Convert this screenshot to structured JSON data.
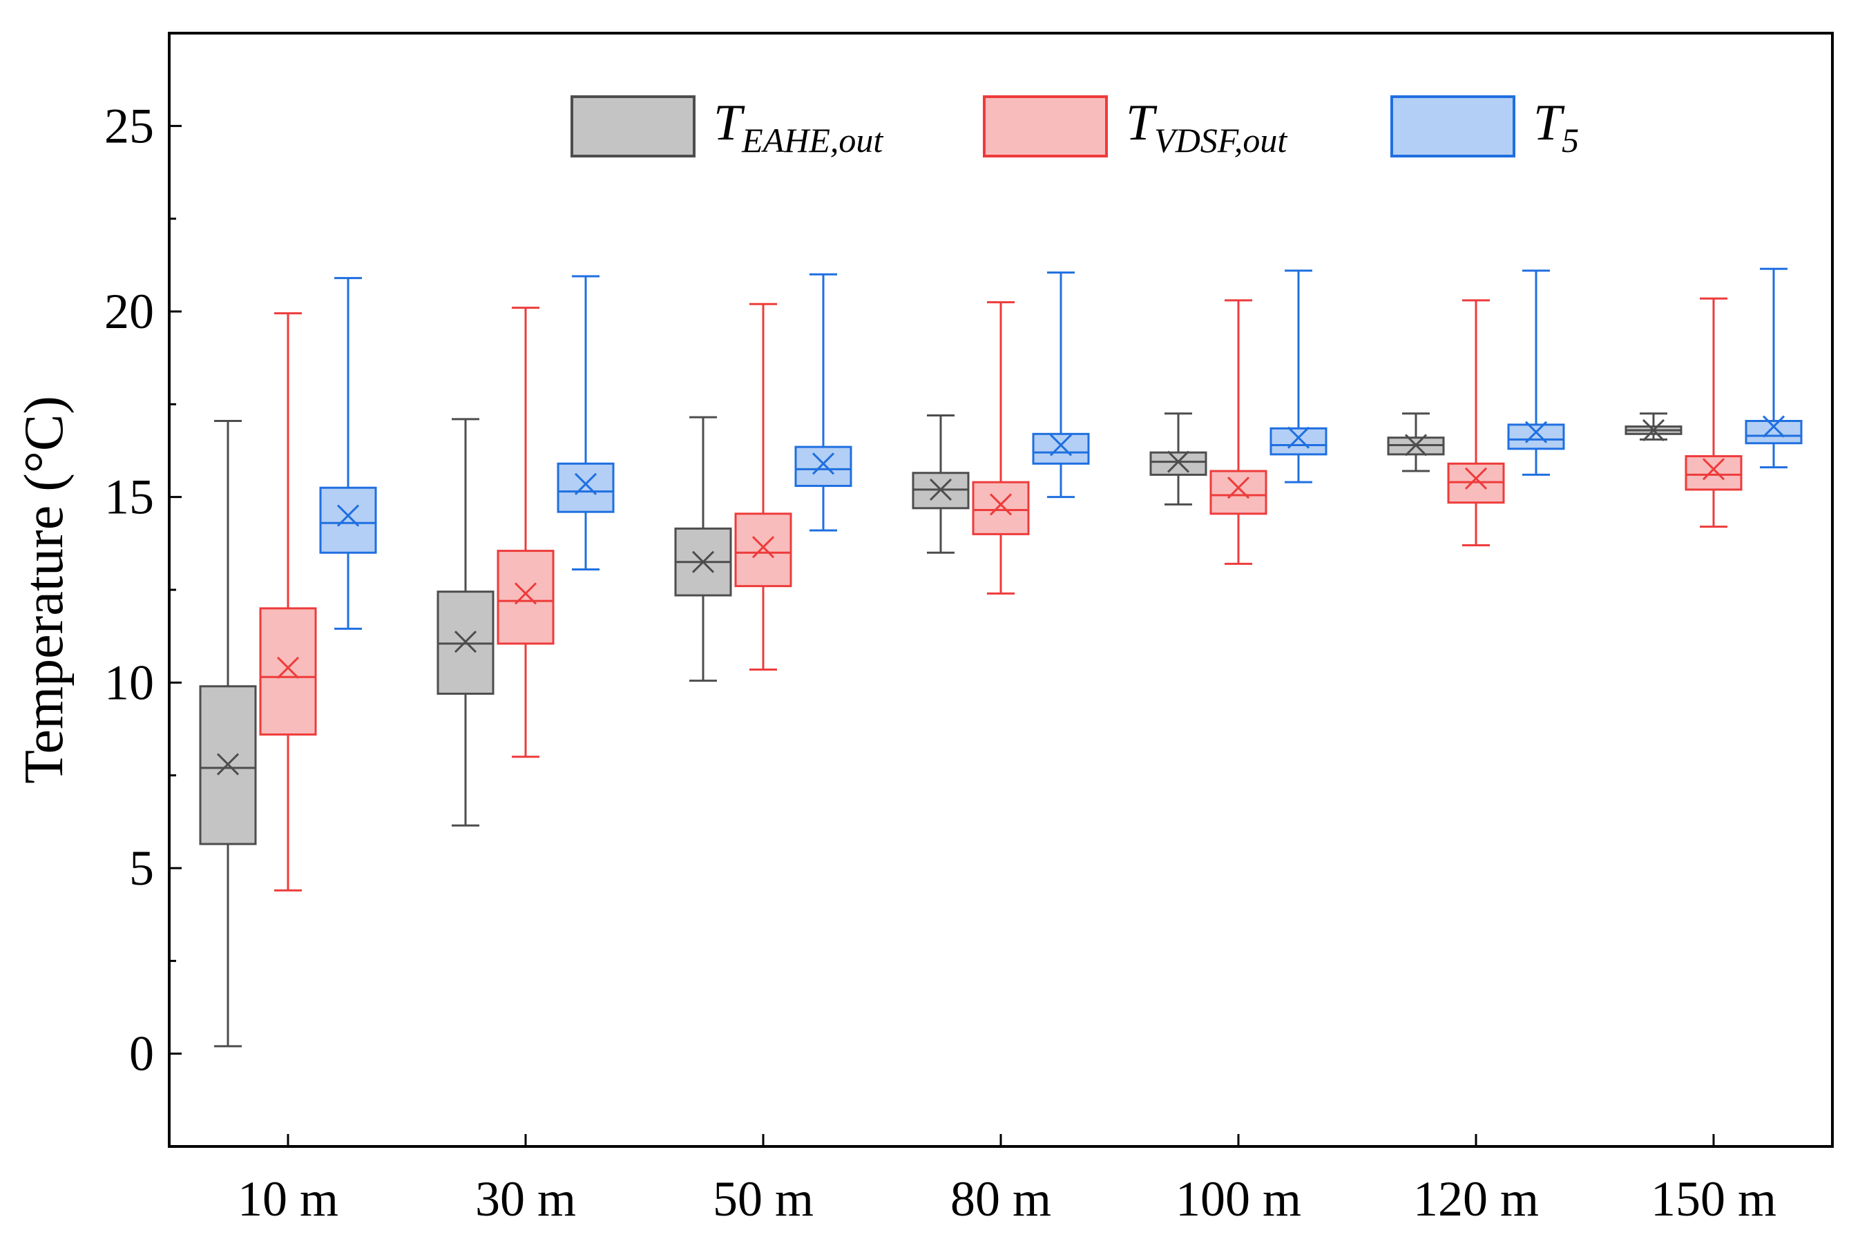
{
  "chart_data": {
    "type": "boxplot",
    "title": "",
    "xlabel": "",
    "ylabel": "Temperature (°C)",
    "ylim": [
      -2.5,
      27.5
    ],
    "yticks": [
      0,
      5,
      10,
      15,
      20,
      25
    ],
    "grid": false,
    "legend_position": "top-center",
    "categories": [
      "10 m",
      "30 m",
      "50 m",
      "80 m",
      "100 m",
      "120 m",
      "150 m"
    ],
    "series": [
      {
        "name": "T",
        "subscript": "EAHE,out",
        "color": "#4d4d4d",
        "fill": "#c4c4c4",
        "boxes": [
          {
            "min": 0.2,
            "q1": 5.65,
            "median": 7.7,
            "q3": 9.9,
            "max": 17.05,
            "mean": 7.8
          },
          {
            "min": 6.15,
            "q1": 9.7,
            "median": 11.05,
            "q3": 12.45,
            "max": 17.1,
            "mean": 11.1
          },
          {
            "min": 10.05,
            "q1": 12.35,
            "median": 13.25,
            "q3": 14.15,
            "max": 17.15,
            "mean": 13.25
          },
          {
            "min": 13.5,
            "q1": 14.7,
            "median": 15.2,
            "q3": 15.65,
            "max": 17.2,
            "mean": 15.2
          },
          {
            "min": 14.8,
            "q1": 15.6,
            "median": 15.95,
            "q3": 16.2,
            "max": 17.25,
            "mean": 15.95
          },
          {
            "min": 15.7,
            "q1": 16.15,
            "median": 16.4,
            "q3": 16.6,
            "max": 17.25,
            "mean": 16.4
          },
          {
            "min": 16.55,
            "q1": 16.7,
            "median": 16.8,
            "q3": 16.9,
            "max": 17.25,
            "mean": 16.8
          }
        ]
      },
      {
        "name": "T",
        "subscript": "VDSF,out",
        "color": "#ee3b3b",
        "fill": "#f9bcbc",
        "boxes": [
          {
            "min": 4.4,
            "q1": 8.6,
            "median": 10.15,
            "q3": 12.0,
            "max": 19.95,
            "mean": 10.4
          },
          {
            "min": 8.0,
            "q1": 11.05,
            "median": 12.2,
            "q3": 13.55,
            "max": 20.1,
            "mean": 12.4
          },
          {
            "min": 10.35,
            "q1": 12.6,
            "median": 13.5,
            "q3": 14.55,
            "max": 20.2,
            "mean": 13.65
          },
          {
            "min": 12.4,
            "q1": 14.0,
            "median": 14.65,
            "q3": 15.4,
            "max": 20.25,
            "mean": 14.8
          },
          {
            "min": 13.2,
            "q1": 14.55,
            "median": 15.05,
            "q3": 15.7,
            "max": 20.3,
            "mean": 15.25
          },
          {
            "min": 13.7,
            "q1": 14.85,
            "median": 15.4,
            "q3": 15.9,
            "max": 20.3,
            "mean": 15.5
          },
          {
            "min": 14.2,
            "q1": 15.2,
            "median": 15.6,
            "q3": 16.1,
            "max": 20.35,
            "mean": 15.75
          }
        ]
      },
      {
        "name": "T",
        "subscript": "5",
        "color": "#1f6fe0",
        "fill": "#b3cff5",
        "boxes": [
          {
            "min": 11.45,
            "q1": 13.5,
            "median": 14.3,
            "q3": 15.25,
            "max": 20.9,
            "mean": 14.5
          },
          {
            "min": 13.05,
            "q1": 14.6,
            "median": 15.15,
            "q3": 15.9,
            "max": 20.95,
            "mean": 15.35
          },
          {
            "min": 14.1,
            "q1": 15.3,
            "median": 15.75,
            "q3": 16.35,
            "max": 21.0,
            "mean": 15.9
          },
          {
            "min": 15.0,
            "q1": 15.9,
            "median": 16.2,
            "q3": 16.7,
            "max": 21.05,
            "mean": 16.4
          },
          {
            "min": 15.4,
            "q1": 16.15,
            "median": 16.4,
            "q3": 16.85,
            "max": 21.1,
            "mean": 16.6
          },
          {
            "min": 15.6,
            "q1": 16.3,
            "median": 16.55,
            "q3": 16.95,
            "max": 21.1,
            "mean": 16.75
          },
          {
            "min": 15.8,
            "q1": 16.45,
            "median": 16.65,
            "q3": 17.05,
            "max": 21.15,
            "mean": 16.9
          }
        ]
      }
    ]
  }
}
